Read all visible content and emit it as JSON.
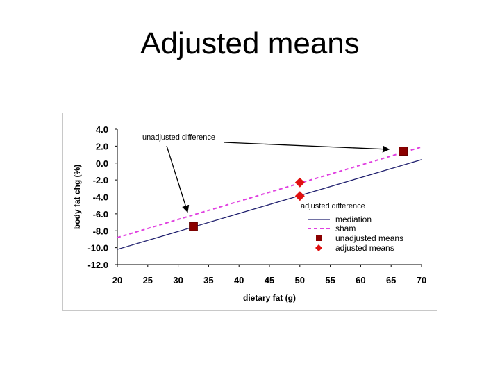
{
  "slide": {
    "title": "Adjusted means"
  },
  "colors": {
    "mediation": "#1f1f6e",
    "sham": "#e040e0",
    "unadjusted": "#8b0000",
    "adjusted": "#e01010",
    "axis": "#000000",
    "frame": "#c8c8c8"
  },
  "chart_data": {
    "type": "line",
    "xlabel": "dietary fat (g)",
    "ylabel": "body fat chg (%)",
    "xlim": [
      20,
      70
    ],
    "ylim": [
      -12,
      4
    ],
    "xticks": [
      "20",
      "25",
      "30",
      "35",
      "40",
      "45",
      "50",
      "55",
      "60",
      "65",
      "70"
    ],
    "yticks": [
      "4.0",
      "2.0",
      "0.0",
      "-2.0",
      "-4.0",
      "-6.0",
      "-8.0",
      "-10.0",
      "-12.0"
    ],
    "grid": false,
    "legend_position": "bottom-right",
    "series": [
      {
        "name": "mediation",
        "kind": "line",
        "style": "solid",
        "x": [
          20,
          70
        ],
        "y": [
          -10.2,
          0.4
        ]
      },
      {
        "name": "sham",
        "kind": "line",
        "style": "dashed",
        "x": [
          20,
          70
        ],
        "y": [
          -8.8,
          1.9
        ]
      },
      {
        "name": "unadjusted means",
        "kind": "marker",
        "marker": "square",
        "x": [
          32.5,
          67
        ],
        "y": [
          -7.5,
          1.4
        ]
      },
      {
        "name": "adjusted means",
        "kind": "marker",
        "marker": "diamond",
        "x": [
          50,
          50
        ],
        "y": [
          -2.3,
          -3.9
        ]
      }
    ],
    "annotations": [
      {
        "text": "unadjusted difference"
      },
      {
        "text": "adjusted difference"
      }
    ]
  }
}
